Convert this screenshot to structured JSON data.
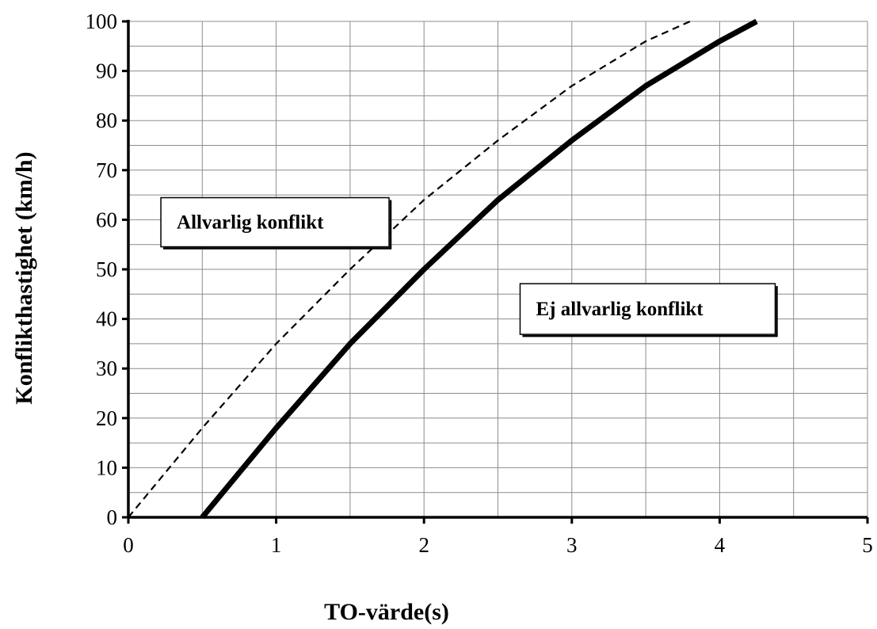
{
  "chart_data": {
    "type": "line",
    "xlabel": "TO-värde(s)",
    "ylabel": "Konflikthastighet (km/h)",
    "xlim": [
      0,
      5
    ],
    "ylim": [
      0,
      100
    ],
    "x_ticks": [
      0,
      1,
      2,
      3,
      4,
      5
    ],
    "y_ticks": [
      0,
      10,
      20,
      30,
      40,
      50,
      60,
      70,
      80,
      90,
      100
    ],
    "grid": true,
    "series": [
      {
        "style": "solid-thick",
        "color": "#000000",
        "x": [
          0.5,
          1.0,
          1.5,
          2.0,
          2.5,
          3.0,
          3.5,
          4.0,
          4.25
        ],
        "y": [
          0,
          18,
          35,
          50,
          64,
          76,
          87,
          96,
          100
        ]
      },
      {
        "style": "dashed",
        "color": "#000000",
        "x": [
          0.0,
          0.5,
          1.0,
          1.5,
          2.0,
          2.5,
          3.0,
          3.5,
          3.8
        ],
        "y": [
          0,
          18,
          35,
          50,
          64,
          76,
          87,
          96,
          100
        ]
      }
    ],
    "annotations": [
      {
        "text": "Allvarlig konflikt",
        "x": 0.22,
        "y": 59.5
      },
      {
        "text": "Ej allvarlig konflikt",
        "x": 2.65,
        "y": 42
      }
    ]
  }
}
